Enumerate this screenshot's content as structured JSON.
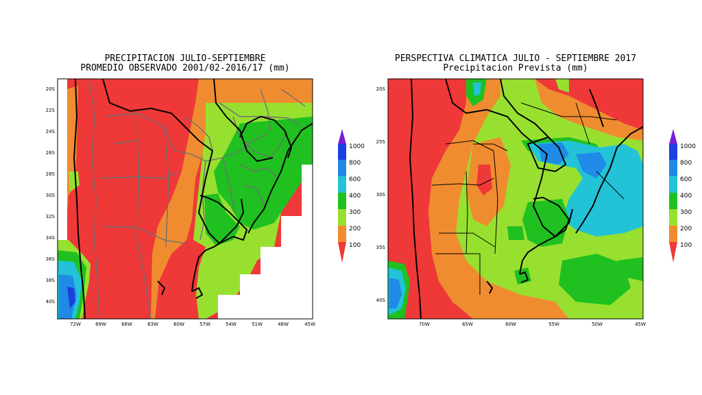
{
  "left_map": {
    "title_line1": "PRECIPITACION JULIO-SEPTIEMBRE",
    "title_line2": "PROMEDIO OBSERVADO 2001/02-2016/17 (mm)",
    "lat_ticks": [
      "20S",
      "22S",
      "24S",
      "26S",
      "28S",
      "30S",
      "32S",
      "34S",
      "36S",
      "38S",
      "40S"
    ],
    "lon_ticks": [
      "72W",
      "69W",
      "66W",
      "63W",
      "60W",
      "57W",
      "54W",
      "51W",
      "48W",
      "45W"
    ]
  },
  "right_map": {
    "title_line1": "PERSPECTIVA CLIMATICA JULIO  - SEPTIEMBRE 2017",
    "title_line2": "Precipitacion Prevista (mm)",
    "lat_ticks": [
      "20S",
      "25S",
      "30S",
      "35S",
      "40S"
    ],
    "lon_ticks": [
      "70W",
      "65W",
      "60W",
      "55W",
      "50W",
      "45W"
    ]
  },
  "colorbar": {
    "labels": [
      "1000",
      "800",
      "600",
      "400",
      "300",
      "200",
      "100"
    ],
    "colors": [
      "#7a1fd6",
      "#1c3fe0",
      "#1f8be6",
      "#22c3d6",
      "#20c020",
      "#98e030",
      "#f08c30",
      "#ef3838"
    ]
  },
  "palette": {
    "red": "#ef3838",
    "orange": "#f08c30",
    "light_green": "#98e030",
    "green": "#20c020",
    "cyan": "#22c3d6",
    "light_blue": "#1f8be6",
    "blue": "#1c3fe0",
    "purple": "#7a1fd6"
  }
}
